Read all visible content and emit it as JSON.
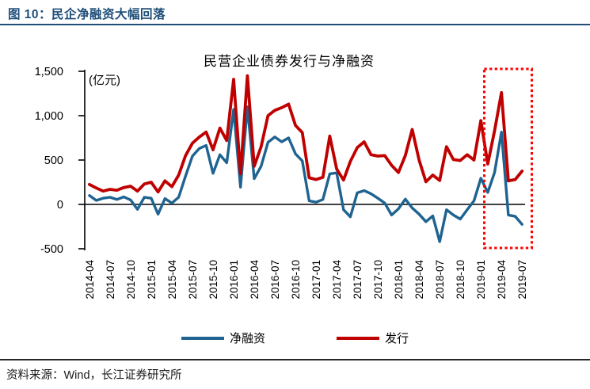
{
  "header": {
    "title": "图 10：民企净融资大幅回落"
  },
  "footer": {
    "source": "资料来源：Wind，长江证券研究所"
  },
  "legend": {
    "net_financing": "净融资",
    "issuance": "发行"
  },
  "colors": {
    "accent_navy": "#1F4E79",
    "line_blue": "#1F6391",
    "line_red": "#C00000",
    "highlight_red": "#FF0000",
    "axis_black": "#000000"
  },
  "chart_data": {
    "type": "line",
    "title": "民营企业债券发行与净融资",
    "unit_label": "(亿元)",
    "ylim": [
      -500,
      1500
    ],
    "y_ticks": [
      1500,
      1000,
      500,
      0,
      -500
    ],
    "y_tick_labels": [
      "1,500",
      "1,000",
      "500",
      "0",
      "-500"
    ],
    "grid": false,
    "legend_position": "bottom",
    "highlight_box": {
      "range": [
        "2019-01",
        "2019-07"
      ],
      "style": "red-dashed-rectangle"
    },
    "x_tick_labels": [
      "2014-04",
      "2014-07",
      "2014-10",
      "2015-01",
      "2015-04",
      "2015-07",
      "2015-10",
      "2016-01",
      "2016-04",
      "2016-07",
      "2016-10",
      "2017-01",
      "2017-04",
      "2017-07",
      "2017-10",
      "2018-01",
      "2018-04",
      "2018-07",
      "2018-10",
      "2019-01",
      "2019-04",
      "2019-07"
    ],
    "x": [
      "2014-04",
      "2014-05",
      "2014-06",
      "2014-07",
      "2014-08",
      "2014-09",
      "2014-10",
      "2014-11",
      "2014-12",
      "2015-01",
      "2015-02",
      "2015-03",
      "2015-04",
      "2015-05",
      "2015-06",
      "2015-07",
      "2015-08",
      "2015-09",
      "2015-10",
      "2015-11",
      "2015-12",
      "2016-01",
      "2016-02",
      "2016-03",
      "2016-04",
      "2016-05",
      "2016-06",
      "2016-07",
      "2016-08",
      "2016-09",
      "2016-10",
      "2016-11",
      "2016-12",
      "2017-01",
      "2017-02",
      "2017-03",
      "2017-04",
      "2017-05",
      "2017-06",
      "2017-07",
      "2017-08",
      "2017-09",
      "2017-10",
      "2017-11",
      "2017-12",
      "2018-01",
      "2018-02",
      "2018-03",
      "2018-04",
      "2018-05",
      "2018-06",
      "2018-07",
      "2018-08",
      "2018-09",
      "2018-10",
      "2018-11",
      "2018-12",
      "2019-01",
      "2019-02",
      "2019-03",
      "2019-04",
      "2019-05",
      "2019-06",
      "2019-07"
    ],
    "series": [
      {
        "name": "净融资",
        "color": "#1F6391",
        "values": [
          100,
          45,
          70,
          80,
          55,
          85,
          50,
          -55,
          80,
          70,
          -110,
          65,
          15,
          80,
          320,
          545,
          630,
          665,
          350,
          560,
          470,
          1070,
          195,
          1100,
          290,
          430,
          700,
          760,
          705,
          750,
          570,
          490,
          40,
          25,
          55,
          345,
          355,
          -60,
          -140,
          130,
          155,
          120,
          70,
          15,
          -120,
          -50,
          60,
          -40,
          -110,
          -195,
          -130,
          -420,
          -60,
          -120,
          -165,
          -60,
          40,
          295,
          135,
          360,
          815,
          -120,
          -135,
          -225
        ]
      },
      {
        "name": "发行",
        "color": "#C00000",
        "values": [
          225,
          185,
          150,
          170,
          160,
          190,
          205,
          150,
          230,
          250,
          140,
          265,
          200,
          330,
          550,
          690,
          760,
          815,
          615,
          860,
          720,
          1410,
          345,
          1450,
          430,
          650,
          1000,
          1060,
          1090,
          1130,
          890,
          810,
          300,
          280,
          305,
          770,
          400,
          275,
          485,
          640,
          705,
          560,
          545,
          550,
          440,
          360,
          550,
          845,
          500,
          255,
          330,
          270,
          650,
          505,
          495,
          560,
          500,
          945,
          455,
          830,
          1260,
          265,
          280,
          375
        ]
      }
    ]
  }
}
